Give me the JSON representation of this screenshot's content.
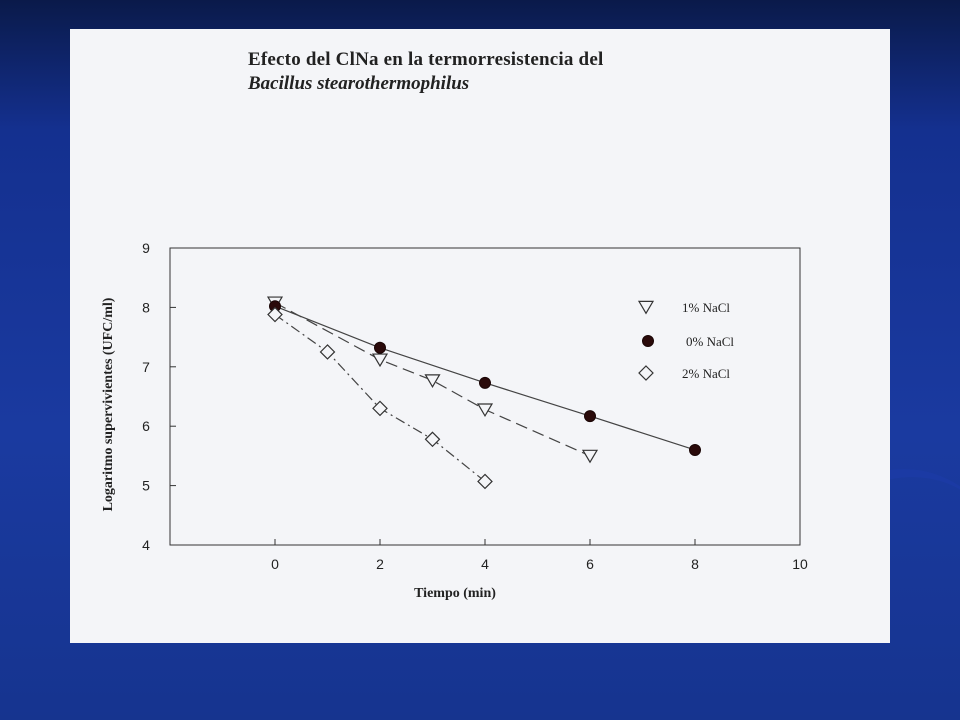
{
  "slide": {
    "title_line1": "Efecto del ClNa en la termorresistencia del",
    "title_line2": "Bacillus stearothermophilus"
  },
  "chart_data": {
    "type": "line",
    "xlabel": "Tiempo (min)",
    "ylabel": "Logaritmo supervivientes (UFC/ml)",
    "xlim": [
      -2,
      10
    ],
    "ylim": [
      4,
      9
    ],
    "xticks": [
      0,
      2,
      4,
      6,
      8,
      10
    ],
    "yticks": [
      4,
      5,
      6,
      7,
      8,
      9
    ],
    "grid": false,
    "legend_position": "right",
    "series": [
      {
        "name": "1% NaCl",
        "marker": "triangle-down-open",
        "line_style": "dashed",
        "x": [
          0,
          2,
          3,
          4,
          6
        ],
        "y": [
          8.08,
          7.12,
          6.77,
          6.28,
          5.5
        ]
      },
      {
        "name": "0% NaCl",
        "marker": "circle-filled",
        "line_style": "solid",
        "x": [
          0,
          2,
          4,
          6,
          8
        ],
        "y": [
          8.02,
          7.32,
          6.73,
          6.17,
          5.6
        ]
      },
      {
        "name": "2% NaCl",
        "marker": "diamond-open",
        "line_style": "dashdot",
        "x": [
          0,
          1,
          2,
          3,
          4
        ],
        "y": [
          7.88,
          7.25,
          6.3,
          5.78,
          5.07
        ]
      }
    ]
  }
}
